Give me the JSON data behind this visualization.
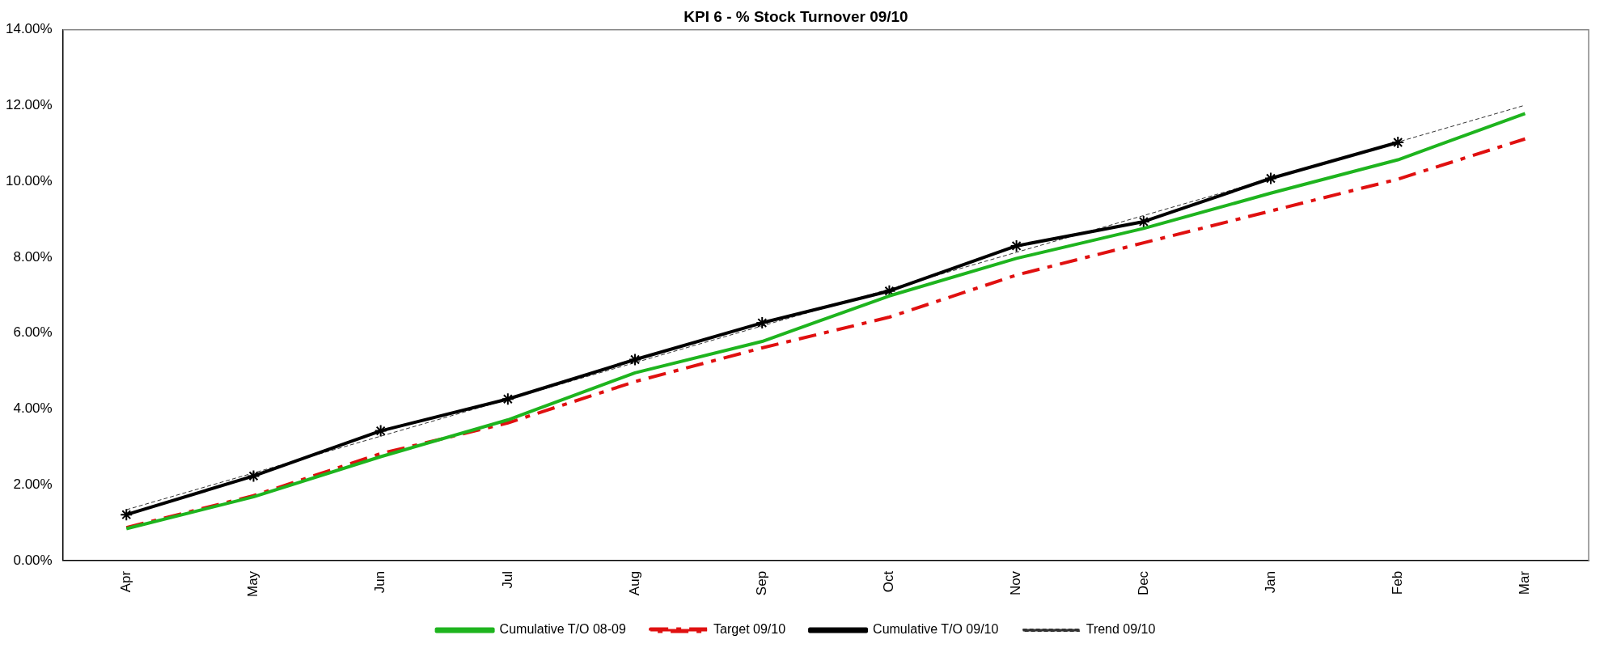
{
  "chart_data": {
    "type": "line",
    "title": "KPI 6 - % Stock Turnover 09/10",
    "categories": [
      "Apr",
      "May",
      "Jun",
      "Jul",
      "Aug",
      "Sep",
      "Oct",
      "Nov",
      "Dec",
      "Jan",
      "Feb",
      "Mar"
    ],
    "series": [
      {
        "name": "Cumulative T/O 08-09",
        "color": "#1eb41e",
        "line_style": "solid",
        "marker": "none",
        "values": [
          0.84,
          1.68,
          2.74,
          3.71,
          4.95,
          5.78,
          6.98,
          7.97,
          8.76,
          9.69,
          10.57,
          11.79
        ]
      },
      {
        "name": "Target 09/10",
        "color": "#e01010",
        "line_style": "dashed",
        "marker": "none",
        "values": [
          0.87,
          1.71,
          2.82,
          3.63,
          4.72,
          5.61,
          6.42,
          7.53,
          8.38,
          9.22,
          10.06,
          11.12
        ]
      },
      {
        "name": "Cumulative T/O 09/10",
        "color": "#000000",
        "line_style": "solid",
        "marker": "cross",
        "values": [
          1.21,
          2.23,
          3.42,
          4.26,
          5.3,
          6.27,
          7.11,
          8.3,
          8.94,
          10.08,
          11.03,
          null
        ]
      },
      {
        "name": "Trend 09/10",
        "color": "#333333",
        "line_style": "dashed",
        "marker": "none",
        "values": [
          1.34,
          2.31,
          3.28,
          4.25,
          5.22,
          6.19,
          7.16,
          8.13,
          9.1,
          10.07,
          11.04,
          12.01
        ]
      }
    ],
    "ylim": [
      0,
      14
    ],
    "yticks": [
      {
        "value": 0,
        "label": "0.00%"
      },
      {
        "value": 2,
        "label": "2.00%"
      },
      {
        "value": 4,
        "label": "4.00%"
      },
      {
        "value": 6,
        "label": "6.00%"
      },
      {
        "value": 8,
        "label": "8.00%"
      },
      {
        "value": 10,
        "label": "10.00%"
      },
      {
        "value": 12,
        "label": "12.00%"
      },
      {
        "value": 14,
        "label": "14.00%"
      }
    ],
    "grid": false,
    "legend": "bottom"
  }
}
